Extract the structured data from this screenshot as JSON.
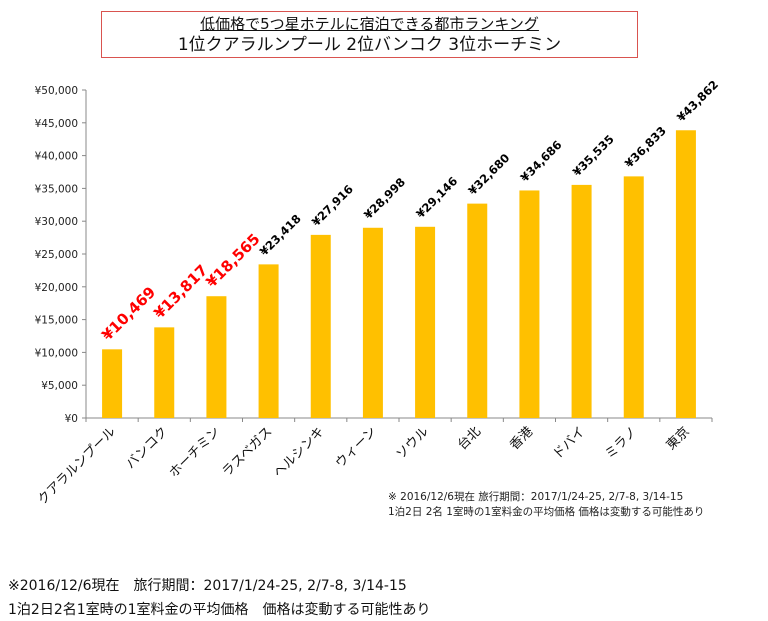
{
  "title": {
    "line1": "低価格で5つ星ホテルに宿泊できる都市ランキング",
    "line2": "1位クアラルンプール  2位バンコク  3位ホーチミン"
  },
  "chart_data": {
    "type": "bar",
    "categories": [
      "クアラルンプール",
      "バンコク",
      "ホーチミン",
      "ラスベガス",
      "ヘルシンキ",
      "ウィーン",
      "ソウル",
      "台北",
      "香港",
      "ドバイ",
      "ミラノ",
      "東京"
    ],
    "values": [
      10469,
      13817,
      18565,
      23418,
      27916,
      28998,
      29146,
      32680,
      34686,
      35535,
      36833,
      43862
    ],
    "data_labels": [
      "¥10,469",
      "¥13,817",
      "¥18,565",
      "¥23,418",
      "¥27,916",
      "¥28,998",
      "¥29,146",
      "¥32,680",
      "¥34,686",
      "¥35,535",
      "¥36,833",
      "¥43,862"
    ],
    "highlighted_count": 3,
    "y_ticks": [
      "¥0",
      "¥5,000",
      "¥10,000",
      "¥15,000",
      "¥20,000",
      "¥25,000",
      "¥30,000",
      "¥35,000",
      "¥40,000",
      "¥45,000",
      "¥50,000"
    ],
    "ylim": [
      0,
      50000
    ],
    "grid": false,
    "colors": {
      "bar": "#FFC000",
      "highlight_label": "#FF0000",
      "label": "#000000"
    },
    "inner_note": {
      "line1": "※ 2016/12/6現在 旅行期間：2017/1/24-25, 2/7-8, 3/14-15",
      "line2": "1泊2日 2名 1室時の1室料金の平均価格 価格は変動する可能性あり"
    }
  },
  "footnote": {
    "line1": "※2016/12/6現在　旅行期間：2017/1/24-25, 2/7-8, 3/14-15",
    "line2": "1泊2日2名1室時の1室料金の平均価格　価格は変動する可能性あり"
  }
}
